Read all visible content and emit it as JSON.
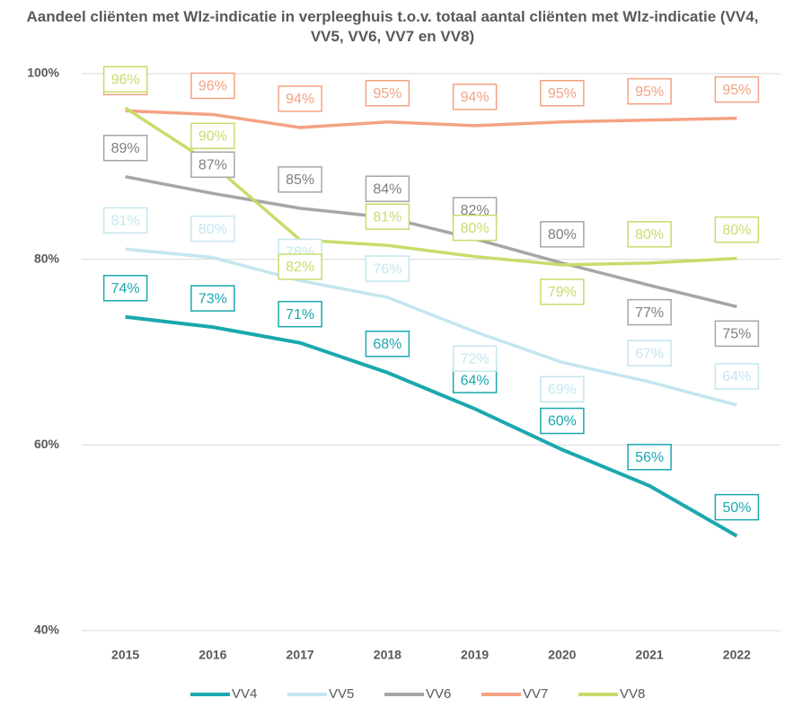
{
  "chart_data": {
    "type": "line",
    "title": "Aandeel cliënten met Wlz-indicatie in verpleeghuis t.o.v. totaal aantal cliënten met Wlz-indicatie (VV4, VV5, VV6, VV7 en VV8)",
    "categories": [
      "2015",
      "2016",
      "2017",
      "2018",
      "2019",
      "2020",
      "2021",
      "2022"
    ],
    "ylim": [
      40,
      100
    ],
    "yticks": [
      {
        "value": 40,
        "label": "40%"
      },
      {
        "value": 60,
        "label": "60%"
      },
      {
        "value": 80,
        "label": "80%"
      },
      {
        "value": 100,
        "label": "100%"
      }
    ],
    "grid": true,
    "legend": "bottom",
    "series": [
      {
        "name": "VV4",
        "color": "#1aa8ae",
        "values": [
          73.8,
          72.7,
          71.0,
          67.8,
          63.9,
          59.5,
          55.6,
          50.2
        ],
        "value_labels": [
          "74%",
          "73%",
          "71%",
          "68%",
          "64%",
          "60%",
          "56%",
          "50%"
        ]
      },
      {
        "name": "VV5",
        "color": "#c4e6ef",
        "values": [
          81.1,
          80.2,
          77.7,
          75.9,
          72.2,
          68.9,
          66.8,
          64.3
        ],
        "value_labels": [
          "81%",
          "80%",
          "78%",
          "76%",
          "72%",
          "69%",
          "67%",
          "64%"
        ]
      },
      {
        "name": "VV6",
        "color": "#a6a6a6",
        "values": [
          88.9,
          87.1,
          85.5,
          84.5,
          82.2,
          79.6,
          77.2,
          74.9
        ],
        "value_labels": [
          "89%",
          "87%",
          "85%",
          "84%",
          "82%",
          "80%",
          "77%",
          "75%"
        ]
      },
      {
        "name": "VV7",
        "color": "#f4a282",
        "values": [
          96.0,
          95.6,
          94.2,
          94.8,
          94.4,
          94.8,
          95.0,
          95.2
        ],
        "value_labels": [
          "96%",
          "96%",
          "94%",
          "95%",
          "94%",
          "95%",
          "95%",
          "95%"
        ]
      },
      {
        "name": "VV8",
        "color": "#c6dd6c",
        "values": [
          96.3,
          90.2,
          82.1,
          81.5,
          80.3,
          79.4,
          79.6,
          80.1
        ],
        "value_labels": [
          "96%",
          "90%",
          "82%",
          "81%",
          "80%",
          "79%",
          "80%",
          "80%"
        ]
      }
    ]
  }
}
